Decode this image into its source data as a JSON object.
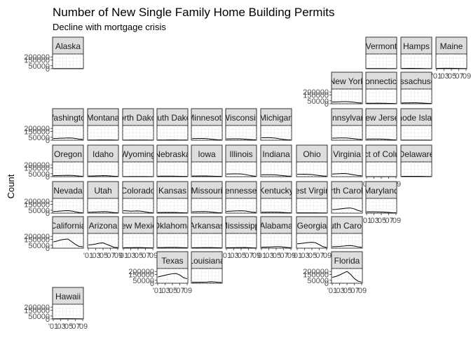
{
  "chart_data": {
    "type": "line",
    "title": "Number of New Single Family Home Building Permits",
    "subtitle": "Decline with mortgage crisis",
    "ylabel": "Count",
    "xlabel": "",
    "x": [
      2001,
      2002,
      2003,
      2004,
      2005,
      2006,
      2007,
      2008,
      2009
    ],
    "x_tick_labels": [
      "'01",
      "'03",
      "'05",
      "'07",
      "'09"
    ],
    "y_tick_labels": [
      "200000",
      "150000",
      "50000",
      "0"
    ],
    "ylim": [
      0,
      250000
    ],
    "grid": true,
    "line_color": "#000000",
    "panel_background": "#ffffff",
    "strip_background": "#dddddd",
    "panels": [
      {
        "label": "Alaska",
        "row": 0,
        "col": 0,
        "values": [
          1800,
          1900,
          2000,
          2100,
          2100,
          1900,
          1400,
          900,
          800
        ]
      },
      {
        "label": "Vermont",
        "row": 0,
        "col": 9,
        "values": [
          2500,
          2600,
          2700,
          2800,
          2800,
          2500,
          2000,
          1500,
          1200
        ]
      },
      {
        "label": "Hamps",
        "row": 0,
        "col": 10,
        "values": [
          5000,
          5100,
          5300,
          5400,
          5000,
          4200,
          3300,
          2200,
          1800
        ]
      },
      {
        "label": "Maine",
        "row": 0,
        "col": 11,
        "values": [
          6000,
          6300,
          6800,
          7200,
          7000,
          6100,
          5000,
          3700,
          3000
        ]
      },
      {
        "label": "New York",
        "row": 1,
        "col": 8,
        "values": [
          30000,
          31000,
          33000,
          35000,
          35000,
          31000,
          26000,
          17000,
          12000
        ]
      },
      {
        "label": "Connecticut",
        "row": 1,
        "col": 9,
        "values": [
          9000,
          9200,
          9600,
          10000,
          9500,
          8200,
          6500,
          4300,
          3200
        ]
      },
      {
        "label": "Massachusetts",
        "row": 1,
        "col": 10,
        "values": [
          14000,
          14500,
          15500,
          16500,
          16000,
          13500,
          11000,
          8000,
          6500
        ]
      },
      {
        "label": "Washington",
        "row": 2,
        "col": 0,
        "values": [
          30000,
          31000,
          34000,
          36000,
          38000,
          37000,
          30000,
          19000,
          13000
        ]
      },
      {
        "label": "Montana",
        "row": 2,
        "col": 1,
        "values": [
          3000,
          3200,
          3600,
          4000,
          4400,
          4500,
          4000,
          2800,
          2000
        ]
      },
      {
        "label": "North Dakota",
        "row": 2,
        "col": 2,
        "values": [
          2000,
          2100,
          2400,
          2600,
          2700,
          2600,
          2400,
          2200,
          2100
        ]
      },
      {
        "label": "South Dakota",
        "row": 2,
        "col": 3,
        "values": [
          3000,
          3200,
          3600,
          3900,
          4000,
          3800,
          3300,
          2600,
          2300
        ]
      },
      {
        "label": "Minnesota",
        "row": 2,
        "col": 4,
        "values": [
          27000,
          28000,
          30000,
          30000,
          27000,
          20000,
          13000,
          8000,
          6000
        ]
      },
      {
        "label": "Wisconsin",
        "row": 2,
        "col": 5,
        "values": [
          22000,
          23000,
          24000,
          24000,
          22000,
          18000,
          14000,
          9000,
          6500
        ]
      },
      {
        "label": "Michigan",
        "row": 2,
        "col": 6,
        "values": [
          43000,
          42000,
          43000,
          40000,
          34000,
          22000,
          14000,
          7000,
          4000
        ]
      },
      {
        "label": "Pennsylvania",
        "row": 2,
        "col": 8,
        "values": [
          35000,
          36000,
          38000,
          39000,
          37000,
          31000,
          25000,
          17000,
          13000
        ]
      },
      {
        "label": "New Jersey",
        "row": 2,
        "col": 9,
        "values": [
          20000,
          20500,
          21000,
          21500,
          20000,
          16000,
          12000,
          7000,
          5000
        ]
      },
      {
        "label": "Rhode Island",
        "row": 2,
        "col": 10,
        "values": [
          2000,
          2100,
          2200,
          2200,
          2000,
          1600,
          1200,
          800,
          600
        ]
      },
      {
        "label": "Oregon",
        "row": 3,
        "col": 0,
        "values": [
          17000,
          17500,
          19000,
          21000,
          23000,
          21000,
          17000,
          10000,
          6000
        ]
      },
      {
        "label": "Idaho",
        "row": 3,
        "col": 1,
        "values": [
          10000,
          11000,
          13000,
          15000,
          18000,
          17000,
          12000,
          7000,
          4000
        ]
      },
      {
        "label": "Wyoming",
        "row": 3,
        "col": 2,
        "values": [
          2000,
          2100,
          2300,
          2500,
          2700,
          2800,
          2500,
          1700,
          1200
        ]
      },
      {
        "label": "Nebraska",
        "row": 3,
        "col": 3,
        "values": [
          8000,
          8300,
          8800,
          9000,
          8500,
          7000,
          5800,
          4500,
          3800
        ]
      },
      {
        "label": "Iowa",
        "row": 3,
        "col": 4,
        "values": [
          10000,
          10500,
          11500,
          12000,
          11500,
          9500,
          7800,
          6000,
          5000
        ]
      },
      {
        "label": "Illinois",
        "row": 3,
        "col": 5,
        "values": [
          45000,
          46000,
          48000,
          48000,
          46000,
          38000,
          26000,
          13000,
          7000
        ]
      },
      {
        "label": "Indiana",
        "row": 3,
        "col": 6,
        "values": [
          31000,
          32000,
          33000,
          32000,
          30000,
          23000,
          17000,
          11000,
          8000
        ]
      },
      {
        "label": "Ohio",
        "row": 3,
        "col": 7,
        "values": [
          40000,
          40000,
          41000,
          39000,
          35000,
          27000,
          19000,
          12000,
          9000
        ]
      },
      {
        "label": "Virginia",
        "row": 3,
        "col": 8,
        "values": [
          45000,
          48000,
          51000,
          53000,
          50000,
          40000,
          30000,
          20000,
          15000
        ]
      },
      {
        "label": "District of Columbia",
        "row": 3,
        "col": 9,
        "values": [
          200,
          250,
          300,
          350,
          300,
          250,
          200,
          150,
          100
        ]
      },
      {
        "label": "Delaware",
        "row": 3,
        "col": 10,
        "values": [
          5000,
          5300,
          5800,
          6200,
          6500,
          5800,
          4500,
          3000,
          2500
        ]
      },
      {
        "label": "Nevada",
        "row": 4,
        "col": 0,
        "values": [
          28000,
          30000,
          35000,
          40000,
          42000,
          36000,
          22000,
          10000,
          5000
        ]
      },
      {
        "label": "Utah",
        "row": 4,
        "col": 1,
        "values": [
          15000,
          16000,
          19000,
          22000,
          25000,
          24000,
          17000,
          9000,
          6000
        ]
      },
      {
        "label": "Colorado",
        "row": 4,
        "col": 2,
        "values": [
          40000,
          38000,
          33000,
          35000,
          37000,
          31000,
          21000,
          11000,
          6000
        ]
      },
      {
        "label": "Kansas",
        "row": 4,
        "col": 3,
        "values": [
          10000,
          10500,
          11500,
          12000,
          11500,
          10000,
          8000,
          5500,
          4500
        ]
      },
      {
        "label": "Missouri",
        "row": 4,
        "col": 4,
        "values": [
          23000,
          24000,
          26000,
          27000,
          26000,
          20000,
          14000,
          8000,
          6000
        ]
      },
      {
        "label": "Tennessee",
        "row": 4,
        "col": 5,
        "values": [
          30000,
          32000,
          35000,
          38000,
          40000,
          37000,
          28000,
          17000,
          12000
        ]
      },
      {
        "label": "Kentucky",
        "row": 4,
        "col": 6,
        "values": [
          15000,
          15500,
          16500,
          17000,
          17000,
          15000,
          11000,
          7500,
          6000
        ]
      },
      {
        "label": "West Virginia",
        "row": 4,
        "col": 7,
        "values": [
          4000,
          4200,
          4500,
          4800,
          5000,
          4500,
          3500,
          2600,
          2200
        ]
      },
      {
        "label": "North Carolina",
        "row": 4,
        "col": 8,
        "values": [
          60000,
          63000,
          70000,
          78000,
          85000,
          87000,
          72000,
          45000,
          30000
        ]
      },
      {
        "label": "Maryland",
        "row": 4,
        "col": 9,
        "values": [
          22000,
          23000,
          22000,
          21000,
          20000,
          16000,
          12000,
          8000,
          6500
        ]
      },
      {
        "label": "California",
        "row": 5,
        "col": 0,
        "values": [
          105000,
          120000,
          140000,
          150000,
          155000,
          110000,
          65000,
          30000,
          25000
        ]
      },
      {
        "label": "Arizona",
        "row": 5,
        "col": 1,
        "values": [
          55000,
          60000,
          70000,
          85000,
          90000,
          65000,
          40000,
          15000,
          10000
        ]
      },
      {
        "label": "New Mexico",
        "row": 5,
        "col": 2,
        "values": [
          8000,
          8500,
          9500,
          10500,
          11000,
          10000,
          8000,
          5500,
          4000
        ]
      },
      {
        "label": "Oklahoma",
        "row": 5,
        "col": 3,
        "values": [
          10000,
          11000,
          12500,
          13500,
          14000,
          13000,
          11000,
          9500,
          8000
        ]
      },
      {
        "label": "Arkansas",
        "row": 5,
        "col": 4,
        "values": [
          8000,
          8500,
          9500,
          10500,
          11000,
          10500,
          9000,
          7000,
          6000
        ]
      },
      {
        "label": "Mississippi",
        "row": 5,
        "col": 5,
        "values": [
          8000,
          8500,
          9000,
          10000,
          10500,
          11500,
          9500,
          6000,
          4500
        ]
      },
      {
        "label": "Alabama",
        "row": 5,
        "col": 6,
        "values": [
          17000,
          18000,
          20000,
          22000,
          25000,
          25000,
          19000,
          12000,
          8000
        ]
      },
      {
        "label": "Georgia",
        "row": 5,
        "col": 7,
        "values": [
          75000,
          80000,
          88000,
          95000,
          100000,
          92000,
          60000,
          25000,
          12000
        ]
      },
      {
        "label": "South Carolina",
        "row": 5,
        "col": 8,
        "values": [
          25000,
          27000,
          30000,
          35000,
          42000,
          45000,
          36000,
          22000,
          15000
        ]
      },
      {
        "label": "Texas",
        "row": 6,
        "col": 3,
        "values": [
          105000,
          120000,
          135000,
          150000,
          160000,
          165000,
          140000,
          95000,
          75000
        ]
      },
      {
        "label": "Louisiana",
        "row": 6,
        "col": 4,
        "values": [
          15000,
          16000,
          17000,
          18000,
          19000,
          25000,
          22000,
          16000,
          13000
        ]
      },
      {
        "label": "Florida",
        "row": 6,
        "col": 8,
        "values": [
          100000,
          115000,
          140000,
          170000,
          200000,
          150000,
          80000,
          35000,
          20000
        ]
      },
      {
        "label": "Hawaii",
        "row": 7,
        "col": 0,
        "values": [
          3000,
          3500,
          4000,
          4500,
          5000,
          4500,
          3500,
          2500,
          2000
        ]
      }
    ],
    "y_axis_panels": [
      "Alaska",
      "New York",
      "Washington",
      "Oregon",
      "Nevada",
      "California",
      "Texas",
      "Florida",
      "Hawaii"
    ],
    "x_axis_panels": [
      "Maine",
      "District of Columbia",
      "Maryland",
      "Arizona",
      "New Mexico",
      "Mississippi",
      "Alabama",
      "Georgia",
      "Texas",
      "Florida",
      "Hawaii"
    ]
  }
}
